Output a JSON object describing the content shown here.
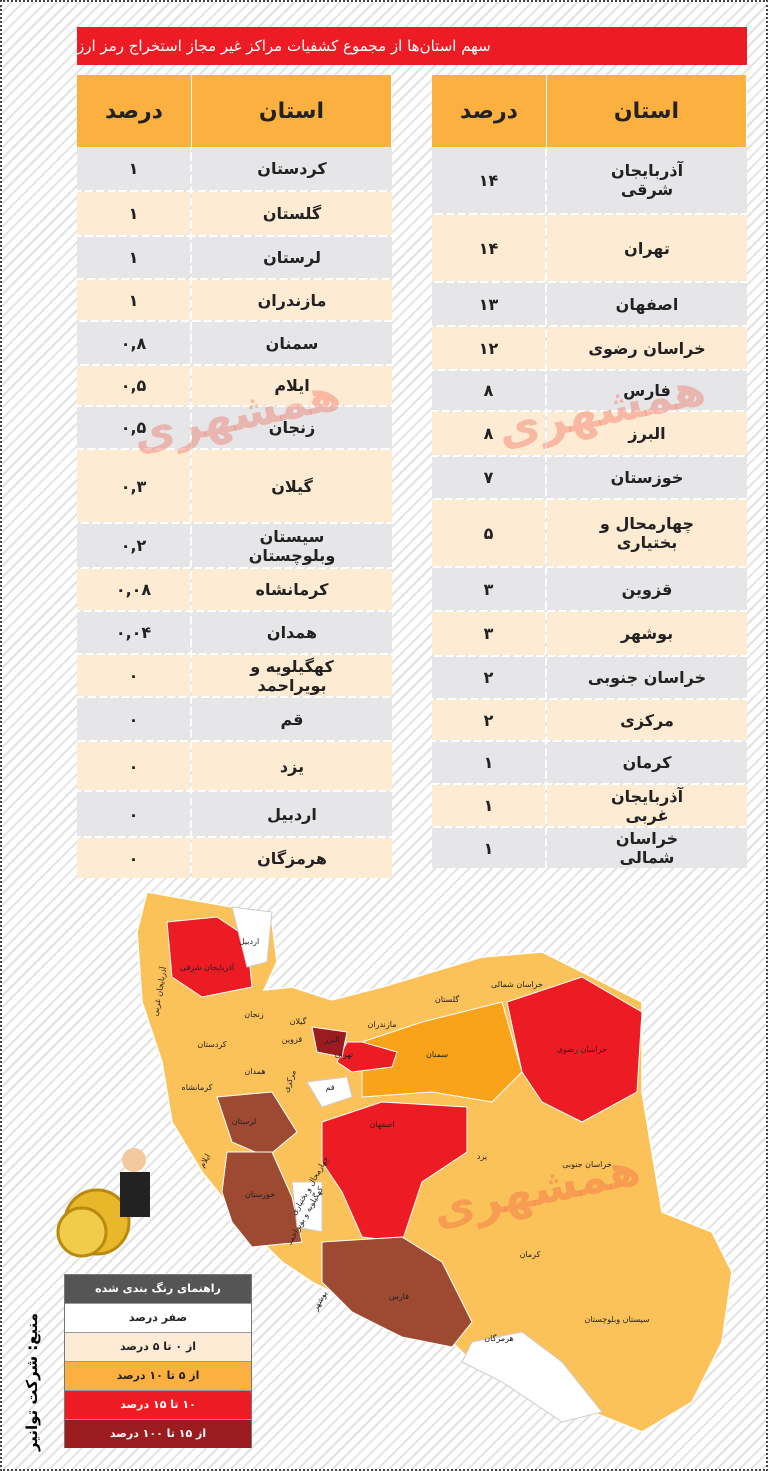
{
  "title": "سهم استان‌ها از مجموع کشفیات مراکز غیر مجاز استخراج رمز ارز",
  "watermark": "همشهری",
  "source": "منبع: شرکت توانیر",
  "tables": [
    {
      "header": [
        "استان",
        "درصد"
      ],
      "rows": [
        [
          "آذربایجان شرقی",
          "۱۴"
        ],
        [
          "تهران",
          "۱۴"
        ],
        [
          "اصفهان",
          "۱۳"
        ],
        [
          "خراسان رضوی",
          "۱۲"
        ],
        [
          "فارس",
          "۸"
        ],
        [
          "البرز",
          "۸"
        ],
        [
          "خوزستان",
          "۷"
        ],
        [
          "چهارمحال و بختیاری",
          "۵"
        ],
        [
          "قزوین",
          "۳"
        ],
        [
          "بوشهر",
          "۳"
        ],
        [
          "خراسان جنوبی",
          "۲"
        ],
        [
          "مرکزی",
          "۲"
        ],
        [
          "کرمان",
          "۱"
        ],
        [
          "آذربایجان غربی",
          "۱"
        ],
        [
          "خراسان شمالی",
          "۱"
        ]
      ]
    },
    {
      "header": [
        "استان",
        "درصد"
      ],
      "rows": [
        [
          "کردستان",
          "۱"
        ],
        [
          "گلستان",
          "۱"
        ],
        [
          "لرستان",
          "۱"
        ],
        [
          "مازندران",
          "۱"
        ],
        [
          "سمنان",
          "۰,۸"
        ],
        [
          "ایلام",
          "۰,۵"
        ],
        [
          "زنجان",
          "۰,۵"
        ],
        [
          "گیلان",
          "۰,۳"
        ],
        [
          "سیستان وبلوچستان",
          "۰,۲"
        ],
        [
          "کرمانشاه",
          "۰,۰۸"
        ],
        [
          "همدان",
          "۰,۰۴"
        ],
        [
          "کهگیلویه و بویراحمد",
          "۰"
        ],
        [
          "قم",
          "۰"
        ],
        [
          "یزد",
          "۰"
        ],
        [
          "اردبیل",
          "۰"
        ],
        [
          "هرمزگان",
          "۰"
        ]
      ]
    }
  ],
  "legend": {
    "title": "راهنمای رنگ بندی شده",
    "items": [
      {
        "label": "صفر درصد",
        "color": "#ffffff"
      },
      {
        "label": "از ۰ تا ۵ درصد",
        "color": "#fdebd6"
      },
      {
        "label": "از ۵ تا ۱۰ درصد",
        "color": "#fbb040"
      },
      {
        "label": "۱۰ تا ۱۵ درصد",
        "color": "#ed1c24"
      },
      {
        "label": "از ۱۵ تا ۱۰۰ درصد",
        "color": "#9b1b1e"
      }
    ]
  },
  "map": {
    "labels": [
      "اردبیل",
      "آذربایجان شرقی",
      "آذربایجان غربی",
      "گیلان",
      "زنجان",
      "قزوین",
      "کردستان",
      "همدان",
      "مرکزی",
      "کرمانشاه",
      "ایلام",
      "لرستان",
      "خوزستان",
      "قم",
      "تهران",
      "البرز",
      "مازندران",
      "گلستان",
      "خراسان شمالی",
      "خراسان رضوی",
      "سمنان",
      "اصفهان",
      "یزد",
      "خراسان جنوبی",
      "کرمان",
      "سیستان وبلوچستان",
      "هرمزگان",
      "فارس",
      "بوشهر",
      "چهارمحال و بختیاری",
      "کهگیلویه و بویراحمد"
    ]
  }
}
